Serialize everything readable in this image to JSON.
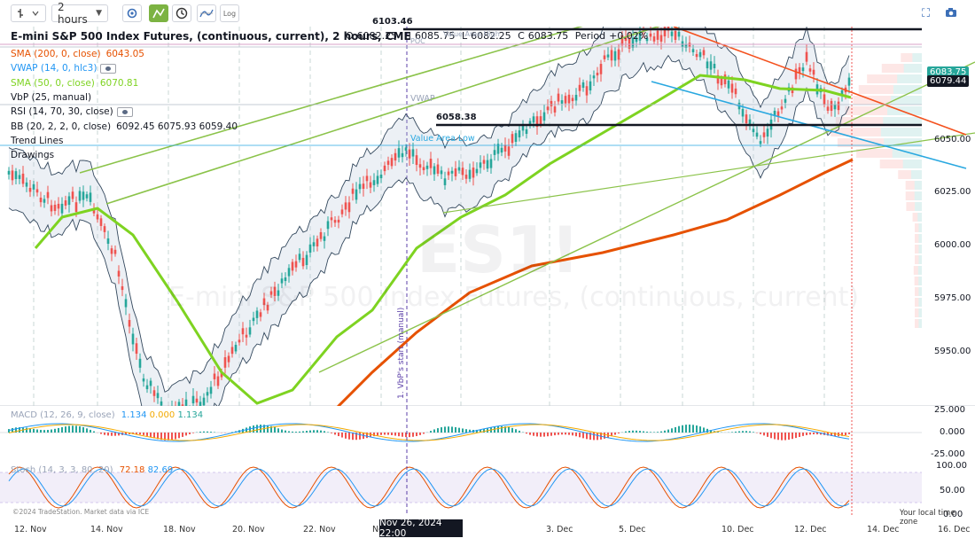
{
  "toolbar": {
    "interval": "2 hours",
    "log_label": "Log"
  },
  "legend": {
    "title": "E-mini S&P 500 Index Futures, (continuous, current), 2 hours, CME",
    "ohlc": {
      "o_label": "O",
      "o": "6082.25",
      "h_label": "H",
      "h": "6085.75",
      "l_label": "L",
      "l": "6082.25",
      "c_label": "C",
      "c": "6083.75",
      "period_label": "Period",
      "period": "+0.02%"
    },
    "indicators": [
      {
        "name": "SMA (200, 0, close)",
        "value": "6043.05",
        "color": "#e65100"
      },
      {
        "name": "VWAP (14, 0, hlc3)",
        "value": "",
        "color": "#2196f3"
      },
      {
        "name": "SMA (50, 0, close)",
        "value": "6070.81",
        "color": "#7ed321"
      },
      {
        "name": "VbP (25, manual)",
        "value": "",
        "color": "#131722"
      },
      {
        "name": "RSI (14, 70, 30, close)",
        "value": "",
        "color": "#131722"
      },
      {
        "name": "BB (20, 2, 2, 0, close)",
        "value": "6092.45 6075.93 6059.40",
        "color": "#131722"
      },
      {
        "name": "Trend Lines",
        "value": "",
        "color": "#131722"
      },
      {
        "name": "Drawings",
        "value": "",
        "color": "#131722"
      }
    ]
  },
  "price_axis": {
    "labels": [
      "6050.00",
      "6025.00",
      "6000.00",
      "5975.00",
      "5950.00"
    ],
    "current_price": "6083.75",
    "bb_price": "6079.44"
  },
  "levels": {
    "top": "6103.46",
    "mid": "6058.38",
    "poc": "POC",
    "vah": "Value Area High",
    "vwap": "VWAP",
    "val": "Value Area Low"
  },
  "annotations": {
    "vbp_start": "1. VbP's start (manual)"
  },
  "watermark": {
    "symbol": "ES1!",
    "desc": "E-mini S&P 500 Index Futures, (continuous, current)"
  },
  "macd": {
    "name": "MACD (12, 26, 9, close)",
    "v1": "1.134",
    "v2": "0.000",
    "v3": "1.134",
    "axis": [
      "25.000",
      "0.000",
      "-25.000"
    ]
  },
  "stoch": {
    "name": "Stoch (14, 3, 3, 80, 20)",
    "v1": "72.18",
    "v2": "82.69",
    "axis": [
      "100.00",
      "50.00",
      "0.00"
    ]
  },
  "time_axis": {
    "labels": [
      "12. Nov",
      "14. Nov",
      "18. Nov",
      "20. Nov",
      "22. Nov",
      "Nov",
      "3. Dec",
      "5. Dec",
      "10. Dec",
      "12. Dec",
      "14. Dec",
      "16. Dec"
    ],
    "crosshair": "Nov 26, 2024 22:00"
  },
  "footer": {
    "copyright": "©2024 TradeStation. Market data via ICE",
    "timezone": "Your local time zone"
  },
  "colors": {
    "sma200": "#e65100",
    "sma50": "#7ed321",
    "vwap": "#2196f3",
    "trend_green": "#8bc34a",
    "trend_red": "#f4511e",
    "trend_blue": "#29a8e0",
    "bull": "#26a69a",
    "bear": "#ef5350"
  }
}
